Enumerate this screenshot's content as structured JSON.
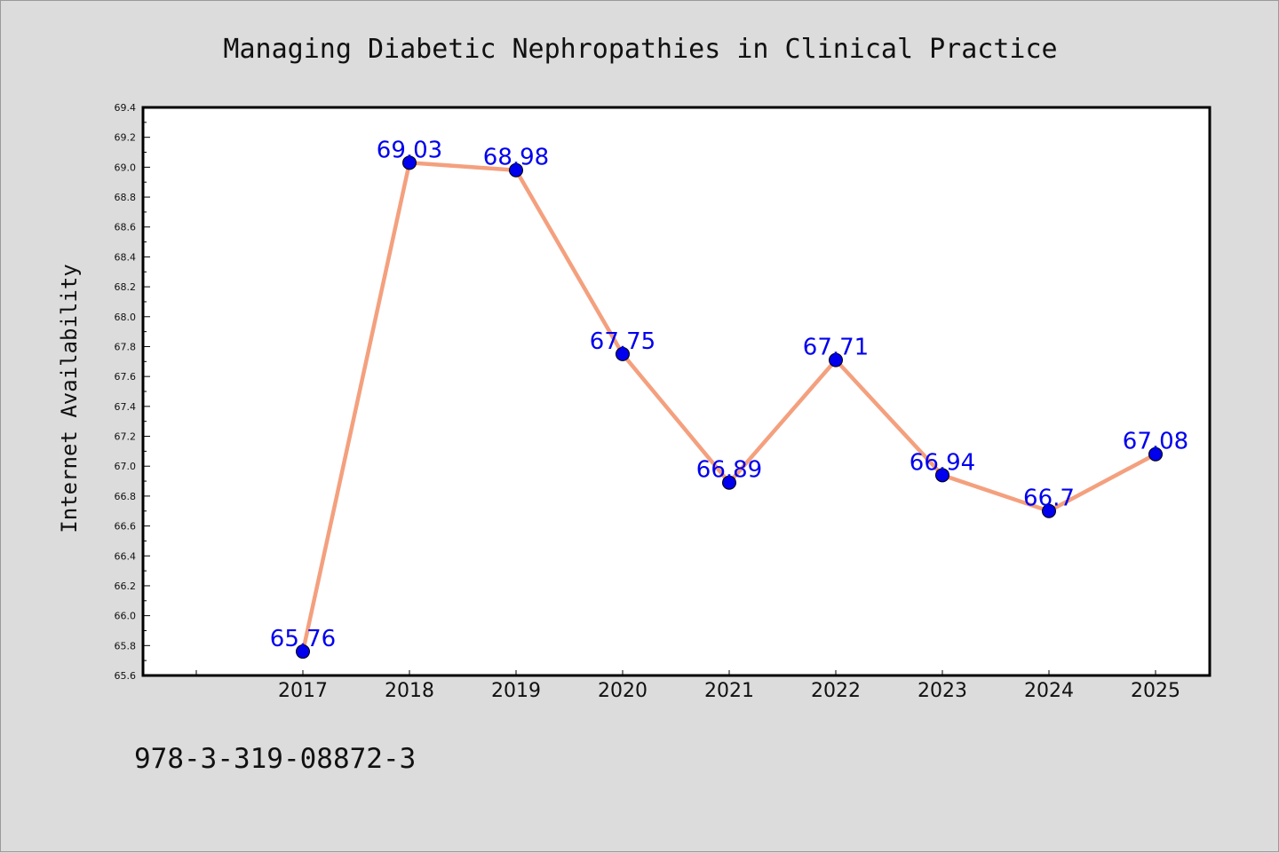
{
  "chart_data": {
    "type": "line",
    "title": "Managing Diabetic Nephropathies in Clinical Practice",
    "xlabel": "",
    "ylabel": "Internet Availability",
    "categories": [
      "2017",
      "2018",
      "2019",
      "2020",
      "2021",
      "2022",
      "2023",
      "2024",
      "2025"
    ],
    "series": [
      {
        "values": [
          65.76,
          69.03,
          68.98,
          67.75,
          66.89,
          67.71,
          66.94,
          66.7,
          67.08
        ],
        "labels": [
          "65.76",
          "69.03",
          "68.98",
          "67.75",
          "66.89",
          "67.71",
          "66.94",
          "66.7",
          "67.08"
        ]
      }
    ],
    "ylim": [
      65.6,
      69.4
    ],
    "yticks": [
      "65.6",
      "65.8",
      "66.0",
      "66.2",
      "66.4",
      "66.6",
      "66.8",
      "67.0",
      "67.2",
      "67.4",
      "67.6",
      "67.8",
      "68.0",
      "68.2",
      "68.4",
      "68.6",
      "68.8",
      "69.0",
      "69.2",
      "69.4"
    ],
    "grid": false,
    "legend": "none",
    "line_color": "#f4a07e",
    "marker_color": "#0000ee",
    "label_color": "#0000ee"
  },
  "footer": {
    "isbn": "978-3-319-08872-3"
  }
}
